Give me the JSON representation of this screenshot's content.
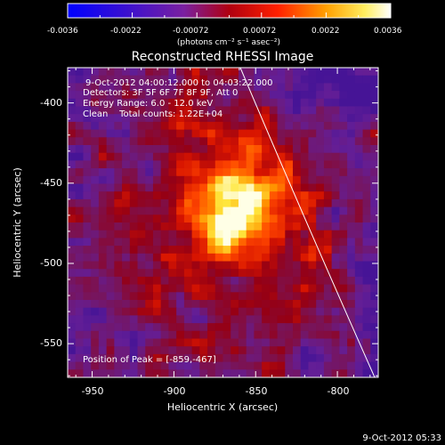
{
  "colorbar": {
    "tick_labels": [
      "-0.0036",
      "-0.0022",
      "-0.00072",
      "0.00072",
      "0.0022",
      "0.0036"
    ],
    "unit_label": "(photons cm⁻² s⁻¹ asec⁻²)",
    "range": [
      -0.0036,
      0.0036
    ]
  },
  "image": {
    "title": "Reconstructed RHESSI Image",
    "x_label": "Heliocentric X (arcsec)",
    "y_label": "Heliocentric Y (arcsec)",
    "x_ticks": [
      "-950",
      "-900",
      "-850",
      "-800"
    ],
    "y_ticks": [
      "-400",
      "-450",
      "-500",
      "-550"
    ],
    "xlim": [
      -965,
      -775
    ],
    "ylim": [
      -571,
      -378
    ],
    "info_lines": [
      "9-Oct-2012 04:00:12.000 to 04:03:22.000",
      "Detectors: 3F 5F 6F 7F 8F 9F, Att 0",
      "Energy Range: 6.0 - 12.0 keV",
      "Clean    Total counts: 1.22E+04"
    ],
    "peak_label": "Position of Peak = [-859,-467]",
    "peak": [
      -859,
      -467
    ],
    "colors": {
      "limb": "#ffffff",
      "frame": "#ffffff"
    }
  },
  "footer": {
    "timestamp": "9-Oct-2012 05:33"
  }
}
